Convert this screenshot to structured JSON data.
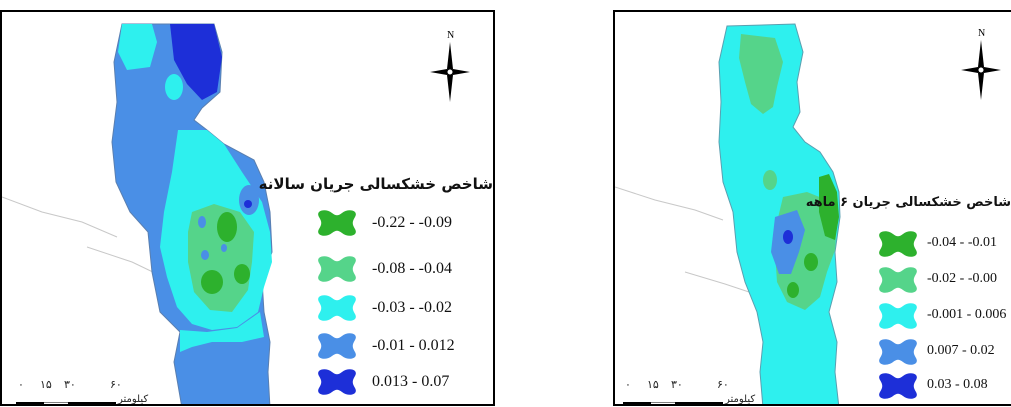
{
  "maps": [
    {
      "legend_title": "شاخص خشکسالی جریان سالانه",
      "legend": [
        {
          "range": "-0.22 - -0.09",
          "color": "#2db12d"
        },
        {
          "range": "-0.08 - -0.04",
          "color": "#55d48a"
        },
        {
          "range": "-0.03 - -0.02",
          "color": "#2ef0ee"
        },
        {
          "range": "-0.01 - 0.012",
          "color": "#4a8fe6"
        },
        {
          "range": "0.013 - 0.07",
          "color": "#1d2fd8"
        }
      ],
      "north_label": "N",
      "scale_ticks": [
        "۰",
        "۱۵",
        "۳۰",
        "۶۰"
      ],
      "scale_unit": "کیلومتر"
    },
    {
      "legend_title": "شاخص خشکسالی جریان ۶ ماهه",
      "legend": [
        {
          "range": "-0.04 - -0.01",
          "color": "#2db12d"
        },
        {
          "range": "-0.02 - -0.00",
          "color": "#55d48a"
        },
        {
          "range": "-0.001 - 0.006",
          "color": "#2ef0ee"
        },
        {
          "range": "0.007 - 0.02",
          "color": "#4a8fe6"
        },
        {
          "range": "0.03 - 0.08",
          "color": "#1d2fd8"
        }
      ],
      "north_label": "N",
      "scale_ticks": [
        "۰",
        "۱۵",
        "۳۰",
        "۶۰"
      ],
      "scale_unit": "کیلومتر"
    }
  ]
}
